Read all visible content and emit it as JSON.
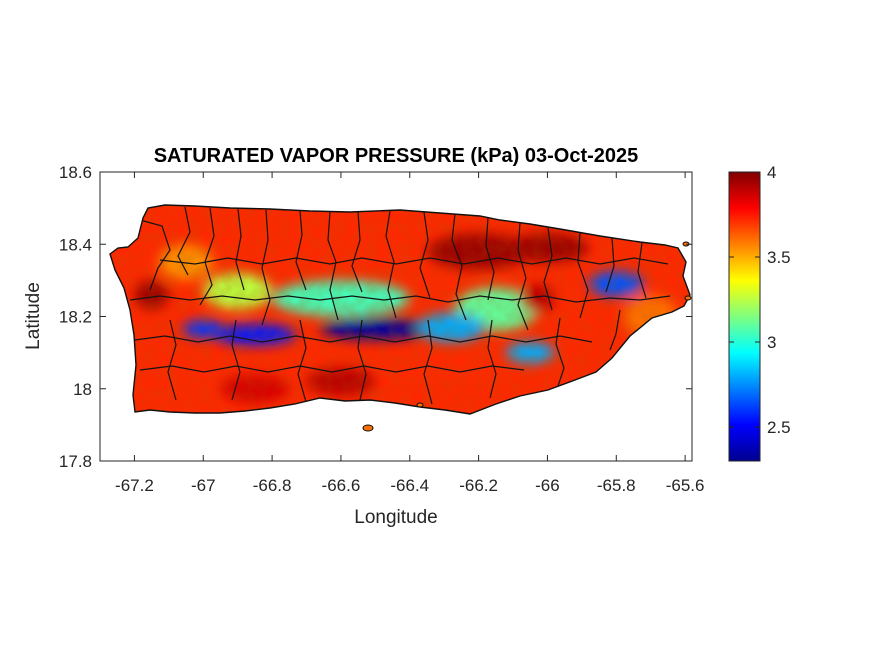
{
  "figure": {
    "title": "SATURATED VAPOR PRESSURE (kPa) 03-Oct-2025"
  },
  "map_data": {
    "type": "heatmap",
    "region": "Puerto Rico",
    "variable": "Saturated vapor pressure",
    "units": "kPa",
    "date": "03-Oct-2025",
    "colormap": "jet",
    "xlabel": "Longitude",
    "ylabel": "Latitude",
    "xlim": [
      -67.3,
      -65.58
    ],
    "ylim": [
      17.8,
      18.6
    ],
    "x_ticks": [
      -67.2,
      -67,
      -66.8,
      -66.6,
      -66.4,
      -66.2,
      -66,
      -65.8,
      -65.6
    ],
    "x_tick_labels": [
      "-67.2",
      "-67",
      "-66.8",
      "-66.6",
      "-66.4",
      "-66.2",
      "-66",
      "-65.8",
      "-65.6"
    ],
    "y_ticks": [
      17.8,
      18,
      18.2,
      18.4,
      18.6
    ],
    "y_tick_labels": [
      "17.8",
      "18",
      "18.2",
      "18.4",
      "18.6"
    ],
    "colorbar": {
      "range": [
        2.3,
        4.0
      ],
      "ticks": [
        2.5,
        3,
        3.5,
        4
      ],
      "tick_labels": [
        "2.5",
        "3",
        "3.5",
        "4"
      ]
    },
    "pattern": "Lowest values (~2.3-2.6 kPa) along the central mountain ridge near -66.5 longitude and a secondary low in the east near -65.8; highest values (~3.8-4.0 kPa) along the north coast east of -66.3 and in the western lowlands near -67.15; coastal plains generally 3.6-3.9 kPa.",
    "blobs": [
      {
        "lon": -66.5,
        "lat": 18.165,
        "value": 2.35,
        "rx": 0.16,
        "ry": 0.03
      },
      {
        "lon": -66.85,
        "lat": 18.15,
        "value": 2.55,
        "rx": 0.12,
        "ry": 0.03
      },
      {
        "lon": -67.0,
        "lat": 18.165,
        "value": 2.6,
        "rx": 0.06,
        "ry": 0.025
      },
      {
        "lon": -66.28,
        "lat": 18.17,
        "value": 2.8,
        "rx": 0.1,
        "ry": 0.04
      },
      {
        "lon": -66.05,
        "lat": 18.1,
        "value": 2.8,
        "rx": 0.07,
        "ry": 0.03
      },
      {
        "lon": -65.8,
        "lat": 18.29,
        "value": 2.65,
        "rx": 0.08,
        "ry": 0.035
      },
      {
        "lon": -66.6,
        "lat": 18.25,
        "value": 3.05,
        "rx": 0.2,
        "ry": 0.05
      },
      {
        "lon": -66.15,
        "lat": 18.22,
        "value": 3.1,
        "rx": 0.12,
        "ry": 0.06
      },
      {
        "lon": -66.9,
        "lat": 18.27,
        "value": 3.25,
        "rx": 0.1,
        "ry": 0.05
      },
      {
        "lon": -66.2,
        "lat": 18.38,
        "value": 3.95,
        "rx": 0.15,
        "ry": 0.05
      },
      {
        "lon": -66.0,
        "lat": 18.39,
        "value": 3.95,
        "rx": 0.12,
        "ry": 0.04
      },
      {
        "lon": -67.15,
        "lat": 18.26,
        "value": 3.95,
        "rx": 0.05,
        "ry": 0.04
      },
      {
        "lon": -66.03,
        "lat": 18.25,
        "value": 3.9,
        "rx": 0.05,
        "ry": 0.04
      },
      {
        "lon": -66.6,
        "lat": 18.02,
        "value": 3.9,
        "rx": 0.1,
        "ry": 0.04
      },
      {
        "lon": -66.85,
        "lat": 18.0,
        "value": 3.85,
        "rx": 0.1,
        "ry": 0.04
      },
      {
        "lon": -67.05,
        "lat": 18.35,
        "value": 3.55,
        "rx": 0.08,
        "ry": 0.05
      },
      {
        "lon": -65.7,
        "lat": 18.2,
        "value": 3.6,
        "rx": 0.08,
        "ry": 0.06
      }
    ]
  }
}
